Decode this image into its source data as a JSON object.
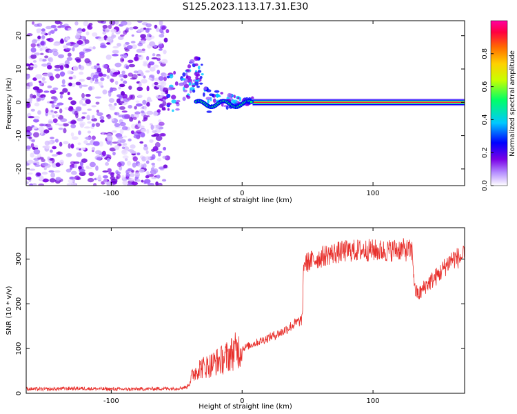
{
  "page_title": "S125.2023.113.17.31.E30",
  "chart_data": [
    {
      "type": "heatmap",
      "title": "S125.2023.113.17.31.E30",
      "xlabel": "Height of straight line (km)",
      "ylabel": "Frequency (Hz)",
      "xlim": [
        -165,
        170
      ],
      "ylim": [
        -25,
        24.5
      ],
      "x_ticks": [
        -100,
        0,
        100
      ],
      "y_ticks": [
        -20,
        -10,
        0,
        10,
        20
      ],
      "colorbar": {
        "label": "Normalized spectral amplitude",
        "range": [
          0,
          1
        ],
        "ticks": [
          "0.0",
          "0.2",
          "0.4",
          "0.6",
          "0.8"
        ],
        "colors": [
          "#ffffff",
          "#b48cff",
          "#7a00e6",
          "#0000ff",
          "#00c8ff",
          "#00ff66",
          "#c8ff00",
          "#ffd000",
          "#ff6a00",
          "#ff0040",
          "#ff00a0"
        ]
      },
      "features": {
        "noise_region_x": [
          -165,
          -57
        ],
        "transition_x": [
          -57,
          8
        ],
        "steady_line_x": [
          8,
          170
        ],
        "steady_line_frequency": 0
      }
    },
    {
      "type": "line",
      "xlabel": "Height of straight line (km)",
      "ylabel": "SNR (10 * v/v)",
      "xlim": [
        -165,
        170
      ],
      "ylim": [
        0,
        370
      ],
      "x_ticks": [
        -100,
        0,
        100
      ],
      "y_ticks": [
        0,
        100,
        200,
        300
      ],
      "color": "#e8302c",
      "x": [
        -165,
        -150,
        -130,
        -110,
        -90,
        -70,
        -50,
        -42,
        -38,
        -34,
        -30,
        -25,
        -20,
        -15,
        -10,
        -5,
        0,
        10,
        20,
        30,
        40,
        46,
        47,
        55,
        65,
        80,
        95,
        110,
        120,
        130,
        132,
        135,
        140,
        150,
        160,
        170
      ],
      "values": [
        10,
        9,
        11,
        10,
        9,
        10,
        11,
        14,
        40,
        55,
        58,
        62,
        70,
        75,
        85,
        95,
        100,
        112,
        124,
        136,
        155,
        165,
        290,
        298,
        310,
        318,
        320,
        318,
        322,
        318,
        230,
        220,
        240,
        265,
        300,
        305
      ]
    }
  ]
}
